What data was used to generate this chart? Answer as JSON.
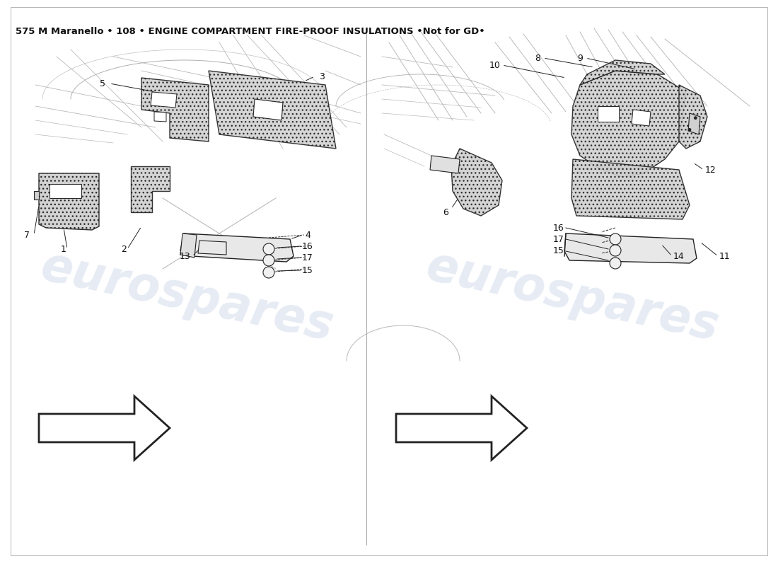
{
  "title": "575 M Maranello • 108 • ENGINE COMPARTMENT FIRE-PROOF INSULATIONS •Not for GD•",
  "title_fontsize": 9.5,
  "background_color": "#ffffff",
  "watermark_text": "eurospares",
  "watermark_color": "#c8d4e8",
  "watermark_alpha": 0.45,
  "border_color": "#cccccc",
  "line_color": "#222222",
  "struct_color": "#888888",
  "label_fontsize": 9,
  "label_color": "#111111"
}
